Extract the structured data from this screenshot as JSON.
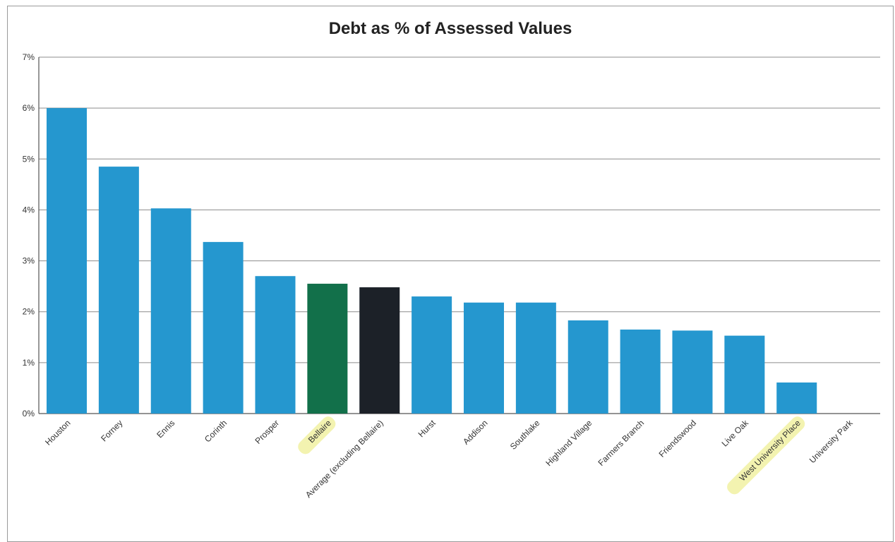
{
  "chart_data": {
    "type": "bar",
    "title": "Debt as % of Assessed Values",
    "xlabel": "",
    "ylabel": "",
    "ylim": [
      0,
      7
    ],
    "yticks": [
      "0%",
      "1%",
      "2%",
      "3%",
      "4%",
      "5%",
      "6%",
      "7%"
    ],
    "grid": true,
    "categories": [
      "Houston",
      "Forney",
      "Ennis",
      "Corinth",
      "Prosper",
      "Bellaire",
      "Average (excluding Bellaire)",
      "Hurst",
      "Addison",
      "Southlake",
      "Highland Village",
      "Farmers Branch",
      "Friendswood",
      "Live Oak",
      "West University Place",
      "University Park"
    ],
    "values": [
      6.0,
      4.85,
      4.03,
      3.37,
      2.7,
      2.55,
      2.48,
      2.3,
      2.18,
      2.18,
      1.83,
      1.65,
      1.63,
      1.53,
      0.61,
      0.0
    ],
    "colors": [
      "#2597cf",
      "#2597cf",
      "#2597cf",
      "#2597cf",
      "#2597cf",
      "#12704a",
      "#1c2128",
      "#2597cf",
      "#2597cf",
      "#2597cf",
      "#2597cf",
      "#2597cf",
      "#2597cf",
      "#2597cf",
      "#2597cf",
      "#2597cf"
    ],
    "highlighted_labels": [
      "Bellaire",
      "West University Place"
    ],
    "highlight_color": "#f3f3b0"
  }
}
